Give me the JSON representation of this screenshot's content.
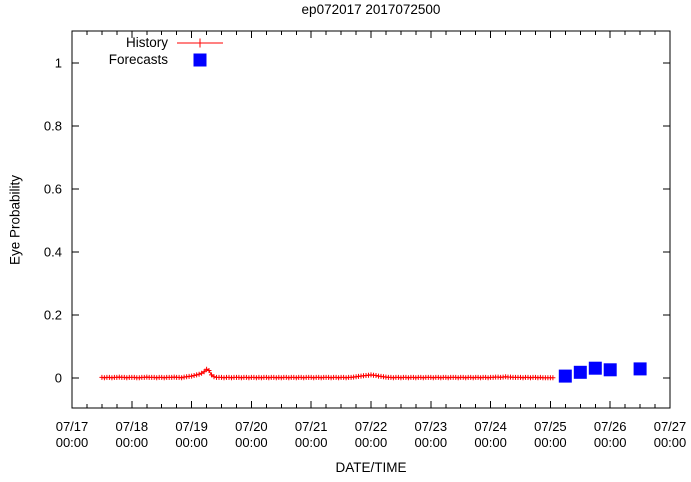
{
  "title": "ep072017 2017072500",
  "axes": {
    "y_label": "Eye Probability",
    "x_label": "DATE/TIME"
  },
  "legend": [
    {
      "label": "History",
      "marker": "plus-line-sample",
      "color": "#ff0000"
    },
    {
      "label": "Forecasts",
      "marker": "filled-square-sample",
      "color": "#0000ff"
    }
  ],
  "colors": {
    "history": "#ff0000",
    "forecast": "#0000ff",
    "axis": "#000000",
    "background": "#ffffff"
  },
  "chart_data": {
    "type": "line",
    "title": "ep072017 2017072500",
    "xlabel": "DATE/TIME",
    "ylabel": "Eye Probability",
    "xlim_days": [
      0,
      10
    ],
    "ylim": [
      -0.0952,
      1.1016
    ],
    "grid": false,
    "legend_position": "top-left-inside",
    "y_ticks": [
      {
        "value": 0,
        "label": "0"
      },
      {
        "value": 0.2,
        "label": "0.2"
      },
      {
        "value": 0.4,
        "label": "0.4"
      },
      {
        "value": 0.6,
        "label": "0.6"
      },
      {
        "value": 0.8,
        "label": "0.8"
      },
      {
        "value": 1,
        "label": "1"
      }
    ],
    "x_ticks": [
      {
        "day": 0,
        "date": "07/17",
        "time": "00:00"
      },
      {
        "day": 1,
        "date": "07/18",
        "time": "00:00"
      },
      {
        "day": 2,
        "date": "07/19",
        "time": "00:00"
      },
      {
        "day": 3,
        "date": "07/20",
        "time": "00:00"
      },
      {
        "day": 4,
        "date": "07/21",
        "time": "00:00"
      },
      {
        "day": 5,
        "date": "07/22",
        "time": "00:00"
      },
      {
        "day": 6,
        "date": "07/23",
        "time": "00:00"
      },
      {
        "day": 7,
        "date": "07/24",
        "time": "00:00"
      },
      {
        "day": 8,
        "date": "07/25",
        "time": "00:00"
      },
      {
        "day": 9,
        "date": "07/26",
        "time": "00:00"
      },
      {
        "day": 10,
        "date": "07/27",
        "time": "00:00"
      }
    ],
    "x_minor_tick_hours": 6,
    "series": [
      {
        "name": "History",
        "style": "line-with-plus-markers",
        "color": "#ff0000",
        "start_time": "07/17 12:00",
        "start_offset_hours": 12,
        "interval_hours": 1,
        "values": [
          0.002,
          0.001,
          0.002,
          0.002,
          0.001,
          0.002,
          0.002,
          0.003,
          0.002,
          0.002,
          0.001,
          0.002,
          0.002,
          0.002,
          0.001,
          0.001,
          0.002,
          0.002,
          0.003,
          0.002,
          0.002,
          0.002,
          0.001,
          0.002,
          0.002,
          0.001,
          0.002,
          0.002,
          0.002,
          0.003,
          0.002,
          0.002,
          0.001,
          0.003,
          0.004,
          0.005,
          0.006,
          0.008,
          0.01,
          0.012,
          0.015,
          0.02,
          0.028,
          0.024,
          0.01,
          0.004,
          0.002,
          0.002,
          0.002,
          0.001,
          0.002,
          0.002,
          0.001,
          0.002,
          0.002,
          0.002,
          0.001,
          0.002,
          0.002,
          0.001,
          0.002,
          0.002,
          0.001,
          0.002,
          0.001,
          0.002,
          0.002,
          0.001,
          0.002,
          0.002,
          0.001,
          0.002,
          0.001,
          0.002,
          0.002,
          0.001,
          0.002,
          0.002,
          0.001,
          0.002,
          0.002,
          0.001,
          0.002,
          0.002,
          0.002,
          0.001,
          0.002,
          0.002,
          0.001,
          0.002,
          0.002,
          0.002,
          0.001,
          0.002,
          0.002,
          0.001,
          0.002,
          0.002,
          0.001,
          0.002,
          0.002,
          0.003,
          0.004,
          0.005,
          0.006,
          0.007,
          0.008,
          0.009,
          0.01,
          0.009,
          0.008,
          0.006,
          0.005,
          0.004,
          0.003,
          0.002,
          0.002,
          0.001,
          0.002,
          0.002,
          0.001,
          0.002,
          0.002,
          0.001,
          0.002,
          0.002,
          0.001,
          0.002,
          0.002,
          0.001,
          0.002,
          0.002,
          0.002,
          0.001,
          0.002,
          0.002,
          0.001,
          0.002,
          0.002,
          0.001,
          0.002,
          0.002,
          0.002,
          0.001,
          0.002,
          0.002,
          0.001,
          0.002,
          0.002,
          0.001,
          0.002,
          0.002,
          0.001,
          0.002,
          0.002,
          0.001,
          0.002,
          0.002,
          0.003,
          0.003,
          0.002,
          0.003,
          0.004,
          0.003,
          0.003,
          0.002,
          0.002,
          0.002,
          0.002,
          0.001,
          0.002,
          0.002,
          0.001,
          0.002,
          0.002,
          0.001,
          0.002,
          0.001,
          0.001,
          0.001,
          0.001,
          0.001
        ]
      },
      {
        "name": "Forecasts",
        "style": "filled-squares",
        "color": "#0000ff",
        "points": [
          {
            "time": "07/25 06:00",
            "offset_hours": 198,
            "value": 0.006
          },
          {
            "time": "07/25 12:00",
            "offset_hours": 204,
            "value": 0.018
          },
          {
            "time": "07/25 18:00",
            "offset_hours": 210,
            "value": 0.031
          },
          {
            "time": "07/26 00:00",
            "offset_hours": 216,
            "value": 0.026
          },
          {
            "time": "07/26 12:00",
            "offset_hours": 228,
            "value": 0.029
          }
        ]
      }
    ]
  }
}
